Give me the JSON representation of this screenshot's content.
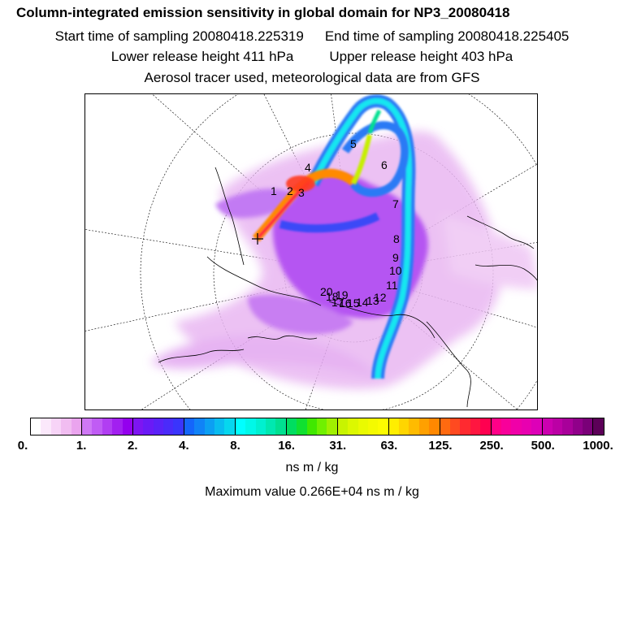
{
  "title": {
    "main": "Column-integrated emission sensitivity in global domain for NP3_20080418",
    "start": "Start time of sampling 20080418.225319",
    "end": "End time of sampling 20080418.225405",
    "lower": "Lower release height  411 hPa",
    "upper": "Upper release height  403 hPa",
    "aerosol": "Aerosol tracer used, meteorological data are from GFS"
  },
  "colorbar": {
    "tick_labels": [
      "0.",
      "1.",
      "2.",
      "4.",
      "8.",
      "16.",
      "31.",
      "63.",
      "125.",
      "250.",
      "500.",
      "1000."
    ],
    "colors": [
      "#ffffff",
      "#fbe8fb",
      "#f7d4f7",
      "#f1bdf1",
      "#eaa4ee",
      "#cf78f5",
      "#c05cf4",
      "#b13ef2",
      "#a220f0",
      "#9400ee",
      "#7d15f2",
      "#6a1af6",
      "#5a22f8",
      "#4a2bfa",
      "#3a35fc",
      "#1466fb",
      "#1083f7",
      "#0c9ff3",
      "#09bcf0",
      "#06d7ee",
      "#00ffff",
      "#00f8e8",
      "#00f0d0",
      "#00e8b0",
      "#00e090",
      "#00dd60",
      "#10e030",
      "#40e800",
      "#70f000",
      "#a0f000",
      "#c8f400",
      "#dcf800",
      "#eafa00",
      "#f4fa00",
      "#fcfc00",
      "#ffee00",
      "#ffd500",
      "#ffbb00",
      "#ffa000",
      "#ff8800",
      "#ff6a10",
      "#ff4a20",
      "#ff2a30",
      "#ff1640",
      "#ff0050",
      "#ff0088",
      "#f8009a",
      "#f000a8",
      "#e800b0",
      "#dd00b8",
      "#cc00b0",
      "#bb00a5",
      "#a8009a",
      "#90008a",
      "#7a0078",
      "#5c0058"
    ],
    "units": "ns m / kg"
  },
  "max_value": "Maximum value  0.266E+04 ns m / kg",
  "map": {
    "point_labels": [
      "1",
      "2",
      "3",
      "4",
      "5",
      "6",
      "7",
      "8",
      "9",
      "10",
      "11",
      "12",
      "13",
      "14",
      "15",
      "16",
      "17",
      "18",
      "19",
      "20"
    ]
  }
}
